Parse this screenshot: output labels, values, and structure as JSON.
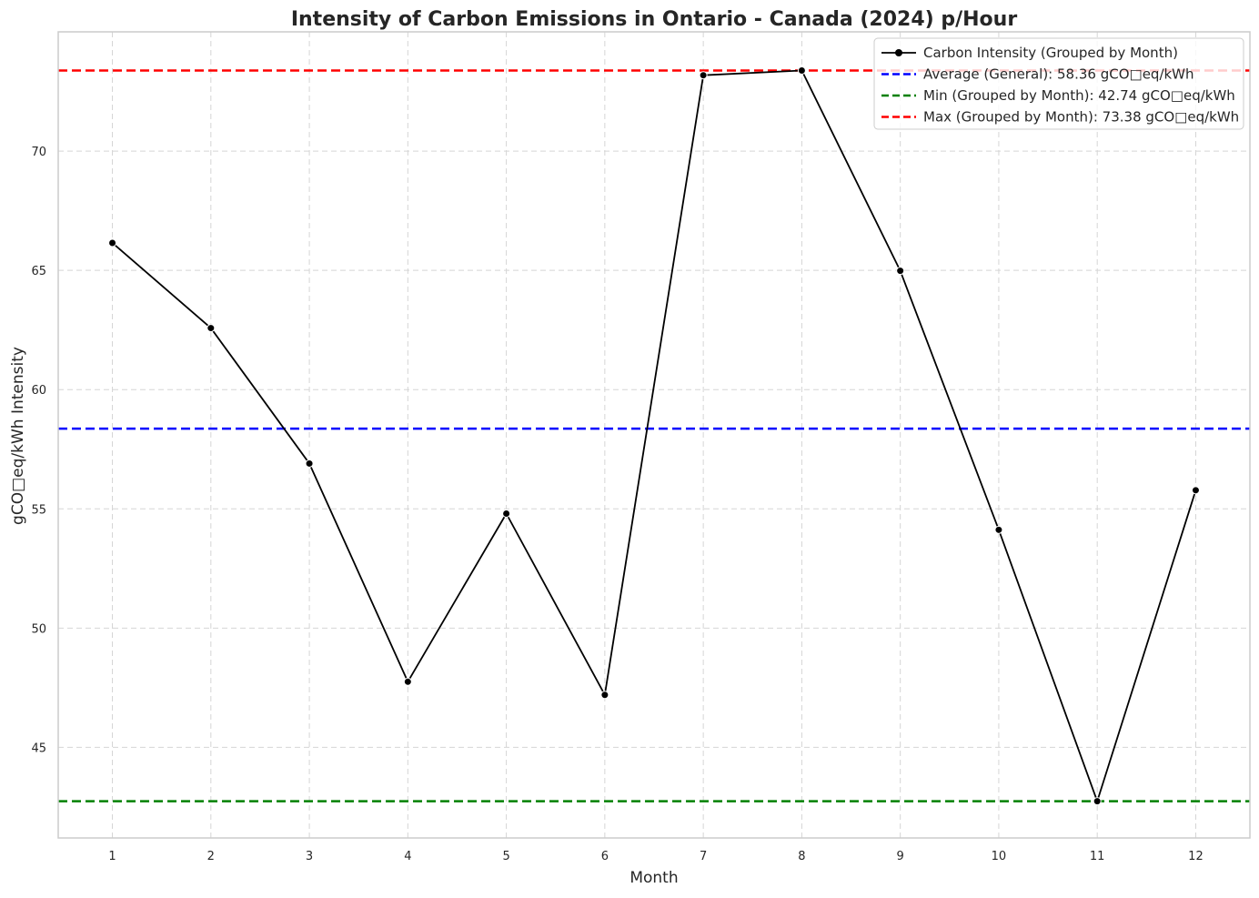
{
  "chart_data": {
    "type": "line",
    "title": "Intensity of Carbon Emissions in Ontario - Canada (2024) p/Hour",
    "xlabel": "Month",
    "ylabel": "gCO□eq/kWh Intensity",
    "x": [
      1,
      2,
      3,
      4,
      5,
      6,
      7,
      8,
      9,
      10,
      11,
      12
    ],
    "xlim": [
      0.45,
      12.55
    ],
    "ylim": [
      41.2,
      75.0
    ],
    "yticks": [
      45,
      50,
      55,
      60,
      65,
      70
    ],
    "grid": true,
    "legend_position": "top-right",
    "series": [
      {
        "name": "Carbon Intensity (Grouped by Month)",
        "values": [
          66.15,
          62.58,
          56.9,
          47.75,
          54.8,
          47.2,
          73.18,
          73.38,
          64.98,
          54.12,
          42.74,
          55.78
        ],
        "color": "#000000",
        "marker": "circle"
      }
    ],
    "reference_lines": [
      {
        "name": "Average (General): 58.36 gCO□eq/kWh",
        "value": 58.36,
        "color": "#0000ff",
        "style": "dashed"
      },
      {
        "name": "Min (Grouped by Month): 42.74 gCO□eq/kWh",
        "value": 42.74,
        "color": "#008000",
        "style": "dashed"
      },
      {
        "name": "Max (Grouped by Month): 73.38 gCO□eq/kWh",
        "value": 73.38,
        "color": "#ff0000",
        "style": "dashed"
      }
    ]
  }
}
